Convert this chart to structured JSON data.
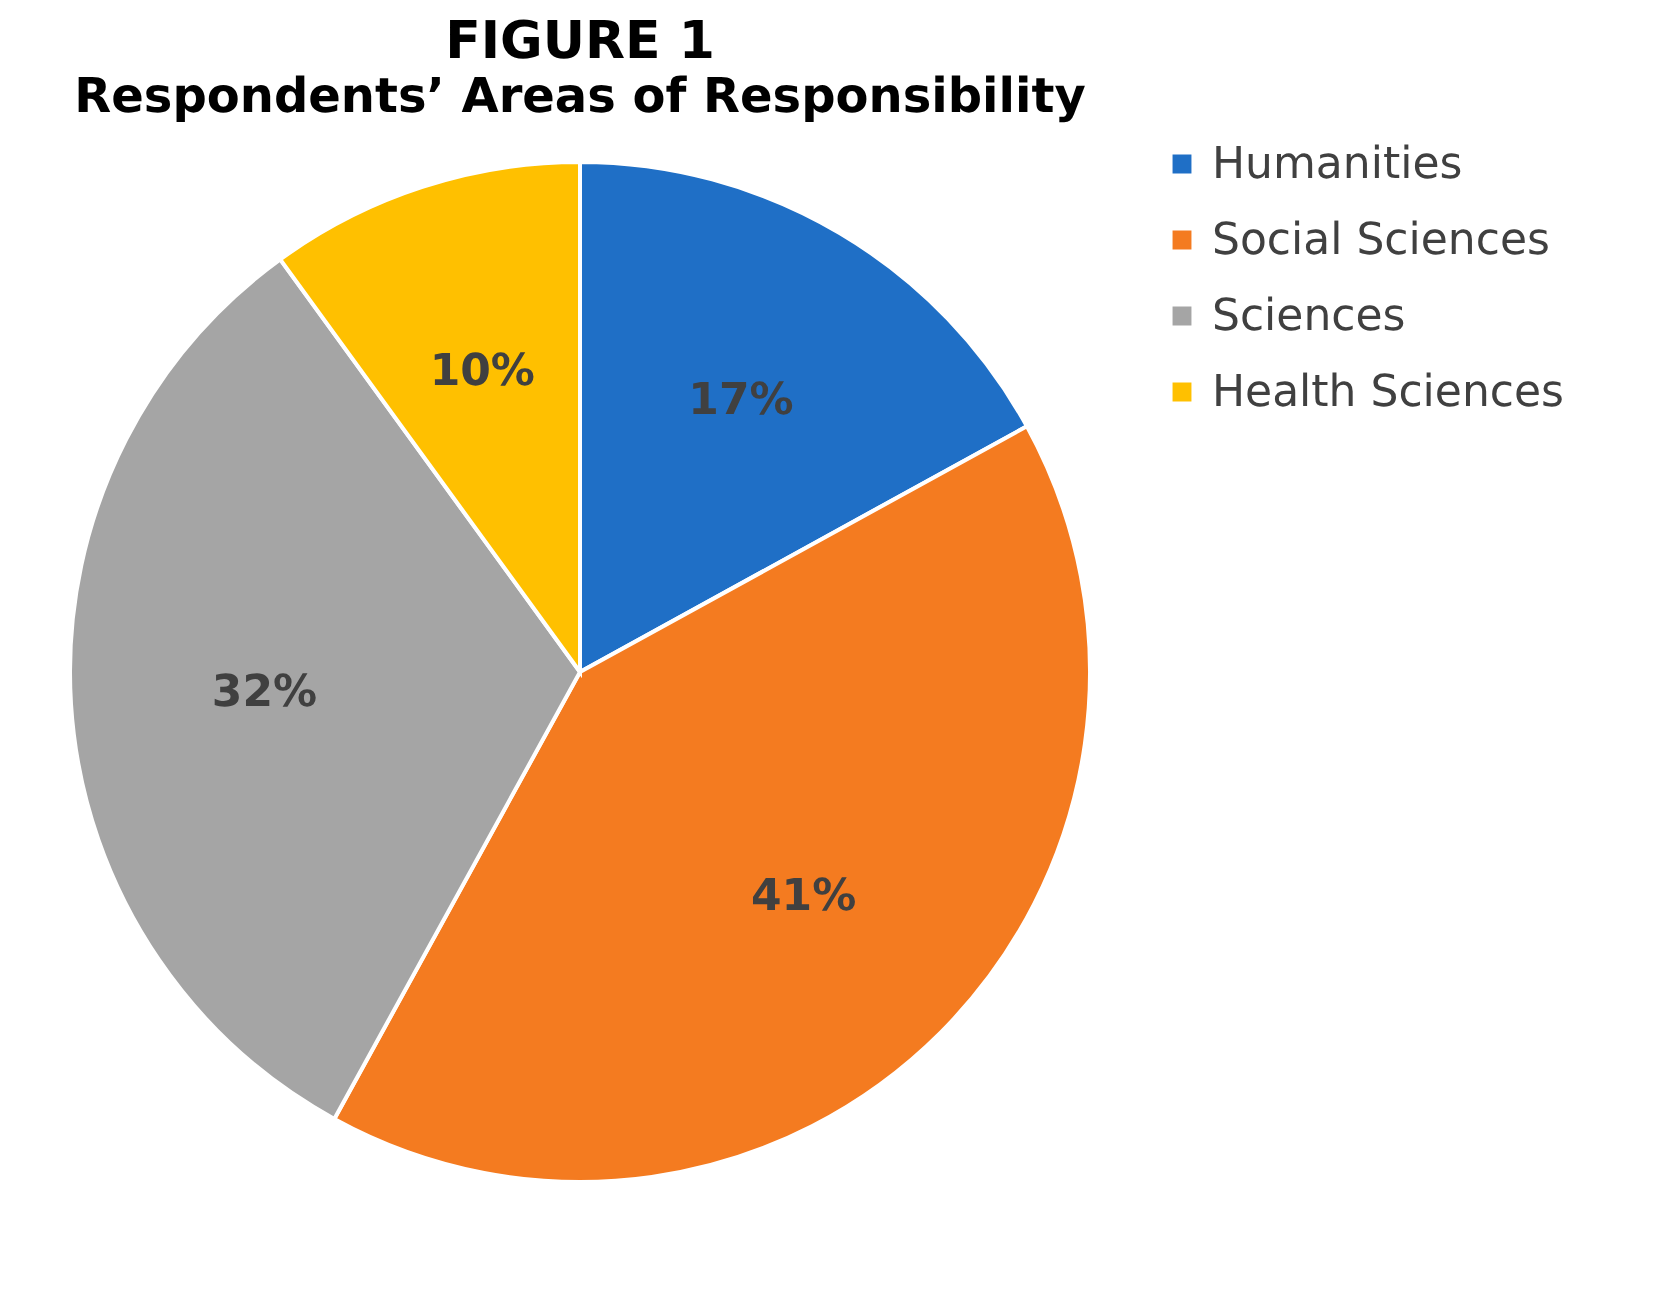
{
  "chart_data": {
    "type": "pie",
    "title": "FIGURE 1",
    "subtitle": "Respondents’ Areas of Responsibility",
    "categories": [
      "Humanities",
      "Social Sciences",
      "Sciences",
      "Health Sciences"
    ],
    "values": [
      17,
      41,
      32,
      10
    ],
    "colors": [
      "#1f6fc6",
      "#f47b20",
      "#a5a5a5",
      "#ffc000"
    ],
    "value_labels": [
      "17%",
      "41%",
      "32%",
      "10%"
    ],
    "legend": "right"
  }
}
